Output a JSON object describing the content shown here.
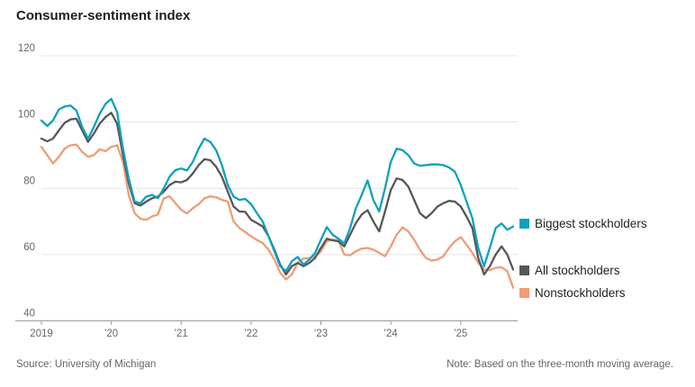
{
  "title": "Consumer-sentiment index",
  "source": "Source: University of Michigan",
  "note": "Note: Based on the three-month moving average.",
  "colors": {
    "biggest_stockholders": "#0FA0BD",
    "all_stockholders": "#57575A",
    "nonstockholders": "#F09C74",
    "gridline": "#E4E4E4",
    "axis": "#9A9A9A",
    "tick_label": "#666666"
  },
  "chart_data": {
    "type": "line",
    "title": "Consumer-sentiment index",
    "xlabel": "",
    "ylabel": "",
    "x_start": "2019-01",
    "x_end": "2025-10",
    "points_per_year": 12,
    "x_ticks": [
      "2019",
      "'20",
      "'21",
      "'22",
      "'23",
      "'24",
      "'25"
    ],
    "x_tick_month_index": [
      0,
      12,
      24,
      36,
      48,
      60,
      72
    ],
    "y_ticks": [
      40,
      60,
      80,
      100,
      120
    ],
    "ylim": [
      40,
      120
    ],
    "grid": "horizontal",
    "legend_position": "right of line ends",
    "series": [
      {
        "name": "Biggest stockholders",
        "color": "#0FA0BD",
        "values": [
          100.5,
          98.8,
          100.5,
          103.8,
          104.7,
          105,
          103.5,
          98.5,
          95,
          98.5,
          102.5,
          105.5,
          107,
          103,
          92,
          83,
          76,
          75.5,
          77.5,
          78,
          77,
          80,
          83.5,
          85.5,
          86,
          85.4,
          88,
          92,
          95,
          94,
          91.5,
          87,
          81,
          77.5,
          76.5,
          76.8,
          75.2,
          72.5,
          70,
          65.5,
          61,
          56.5,
          55,
          58,
          59.3,
          57,
          58.5,
          60.5,
          64.5,
          68.3,
          66,
          64.8,
          63.4,
          68,
          74,
          78,
          82.4,
          76.5,
          73,
          80,
          88,
          92,
          91.5,
          90,
          87.5,
          86.8,
          87,
          87.2,
          87.2,
          87,
          86.3,
          85,
          81,
          76,
          71,
          62,
          56.5,
          62,
          68,
          69.4,
          67.5,
          68.5
        ]
      },
      {
        "name": "All stockholders",
        "color": "#57575A",
        "values": [
          95,
          94.2,
          95,
          97.5,
          99.8,
          100.8,
          101,
          97.5,
          94,
          96.5,
          99.5,
          101.5,
          102.8,
          99.5,
          90,
          81.5,
          75.5,
          74.8,
          76,
          77,
          77.5,
          79,
          81,
          82,
          81.8,
          82.5,
          84.5,
          87,
          88.8,
          88.5,
          86.5,
          83.5,
          79,
          74.5,
          73,
          72.9,
          70.5,
          69.5,
          68.5,
          65.5,
          61.5,
          57,
          54,
          56.5,
          57.5,
          56.5,
          57.5,
          59,
          62,
          64.8,
          64.3,
          64,
          62.5,
          66,
          69.5,
          72.1,
          73.4,
          70,
          67,
          73,
          79.5,
          83,
          82.5,
          80.5,
          76.5,
          72.5,
          71,
          72.5,
          74.5,
          75.5,
          76.2,
          76,
          74.5,
          71.5,
          68,
          59,
          54,
          56.5,
          60,
          62.5,
          60,
          55.5
        ]
      },
      {
        "name": "Nonstockholders",
        "color": "#F09C74",
        "values": [
          92.5,
          90,
          87.5,
          89.5,
          92,
          93,
          93.2,
          91,
          89.5,
          90,
          91.8,
          91.2,
          92.5,
          93,
          88,
          78,
          72.5,
          70.8,
          70.5,
          71.5,
          72.1,
          77,
          77.6,
          75.5,
          73.5,
          72.4,
          74,
          75.2,
          77,
          77.6,
          77.3,
          76.5,
          76,
          70,
          68,
          66.8,
          65.5,
          64.4,
          63.5,
          61.5,
          58.5,
          54.5,
          52.5,
          54,
          57.5,
          58.8,
          59,
          59.5,
          61,
          64,
          64.5,
          64.3,
          60,
          59.8,
          61,
          61.8,
          62,
          61.5,
          60.5,
          59.5,
          62.5,
          66,
          68.2,
          67,
          64.5,
          61.5,
          59,
          58.2,
          58.5,
          59.5,
          62,
          64,
          65.3,
          63,
          60.5,
          57.5,
          55.5,
          55.3,
          56,
          56.2,
          55,
          50
        ]
      }
    ]
  }
}
